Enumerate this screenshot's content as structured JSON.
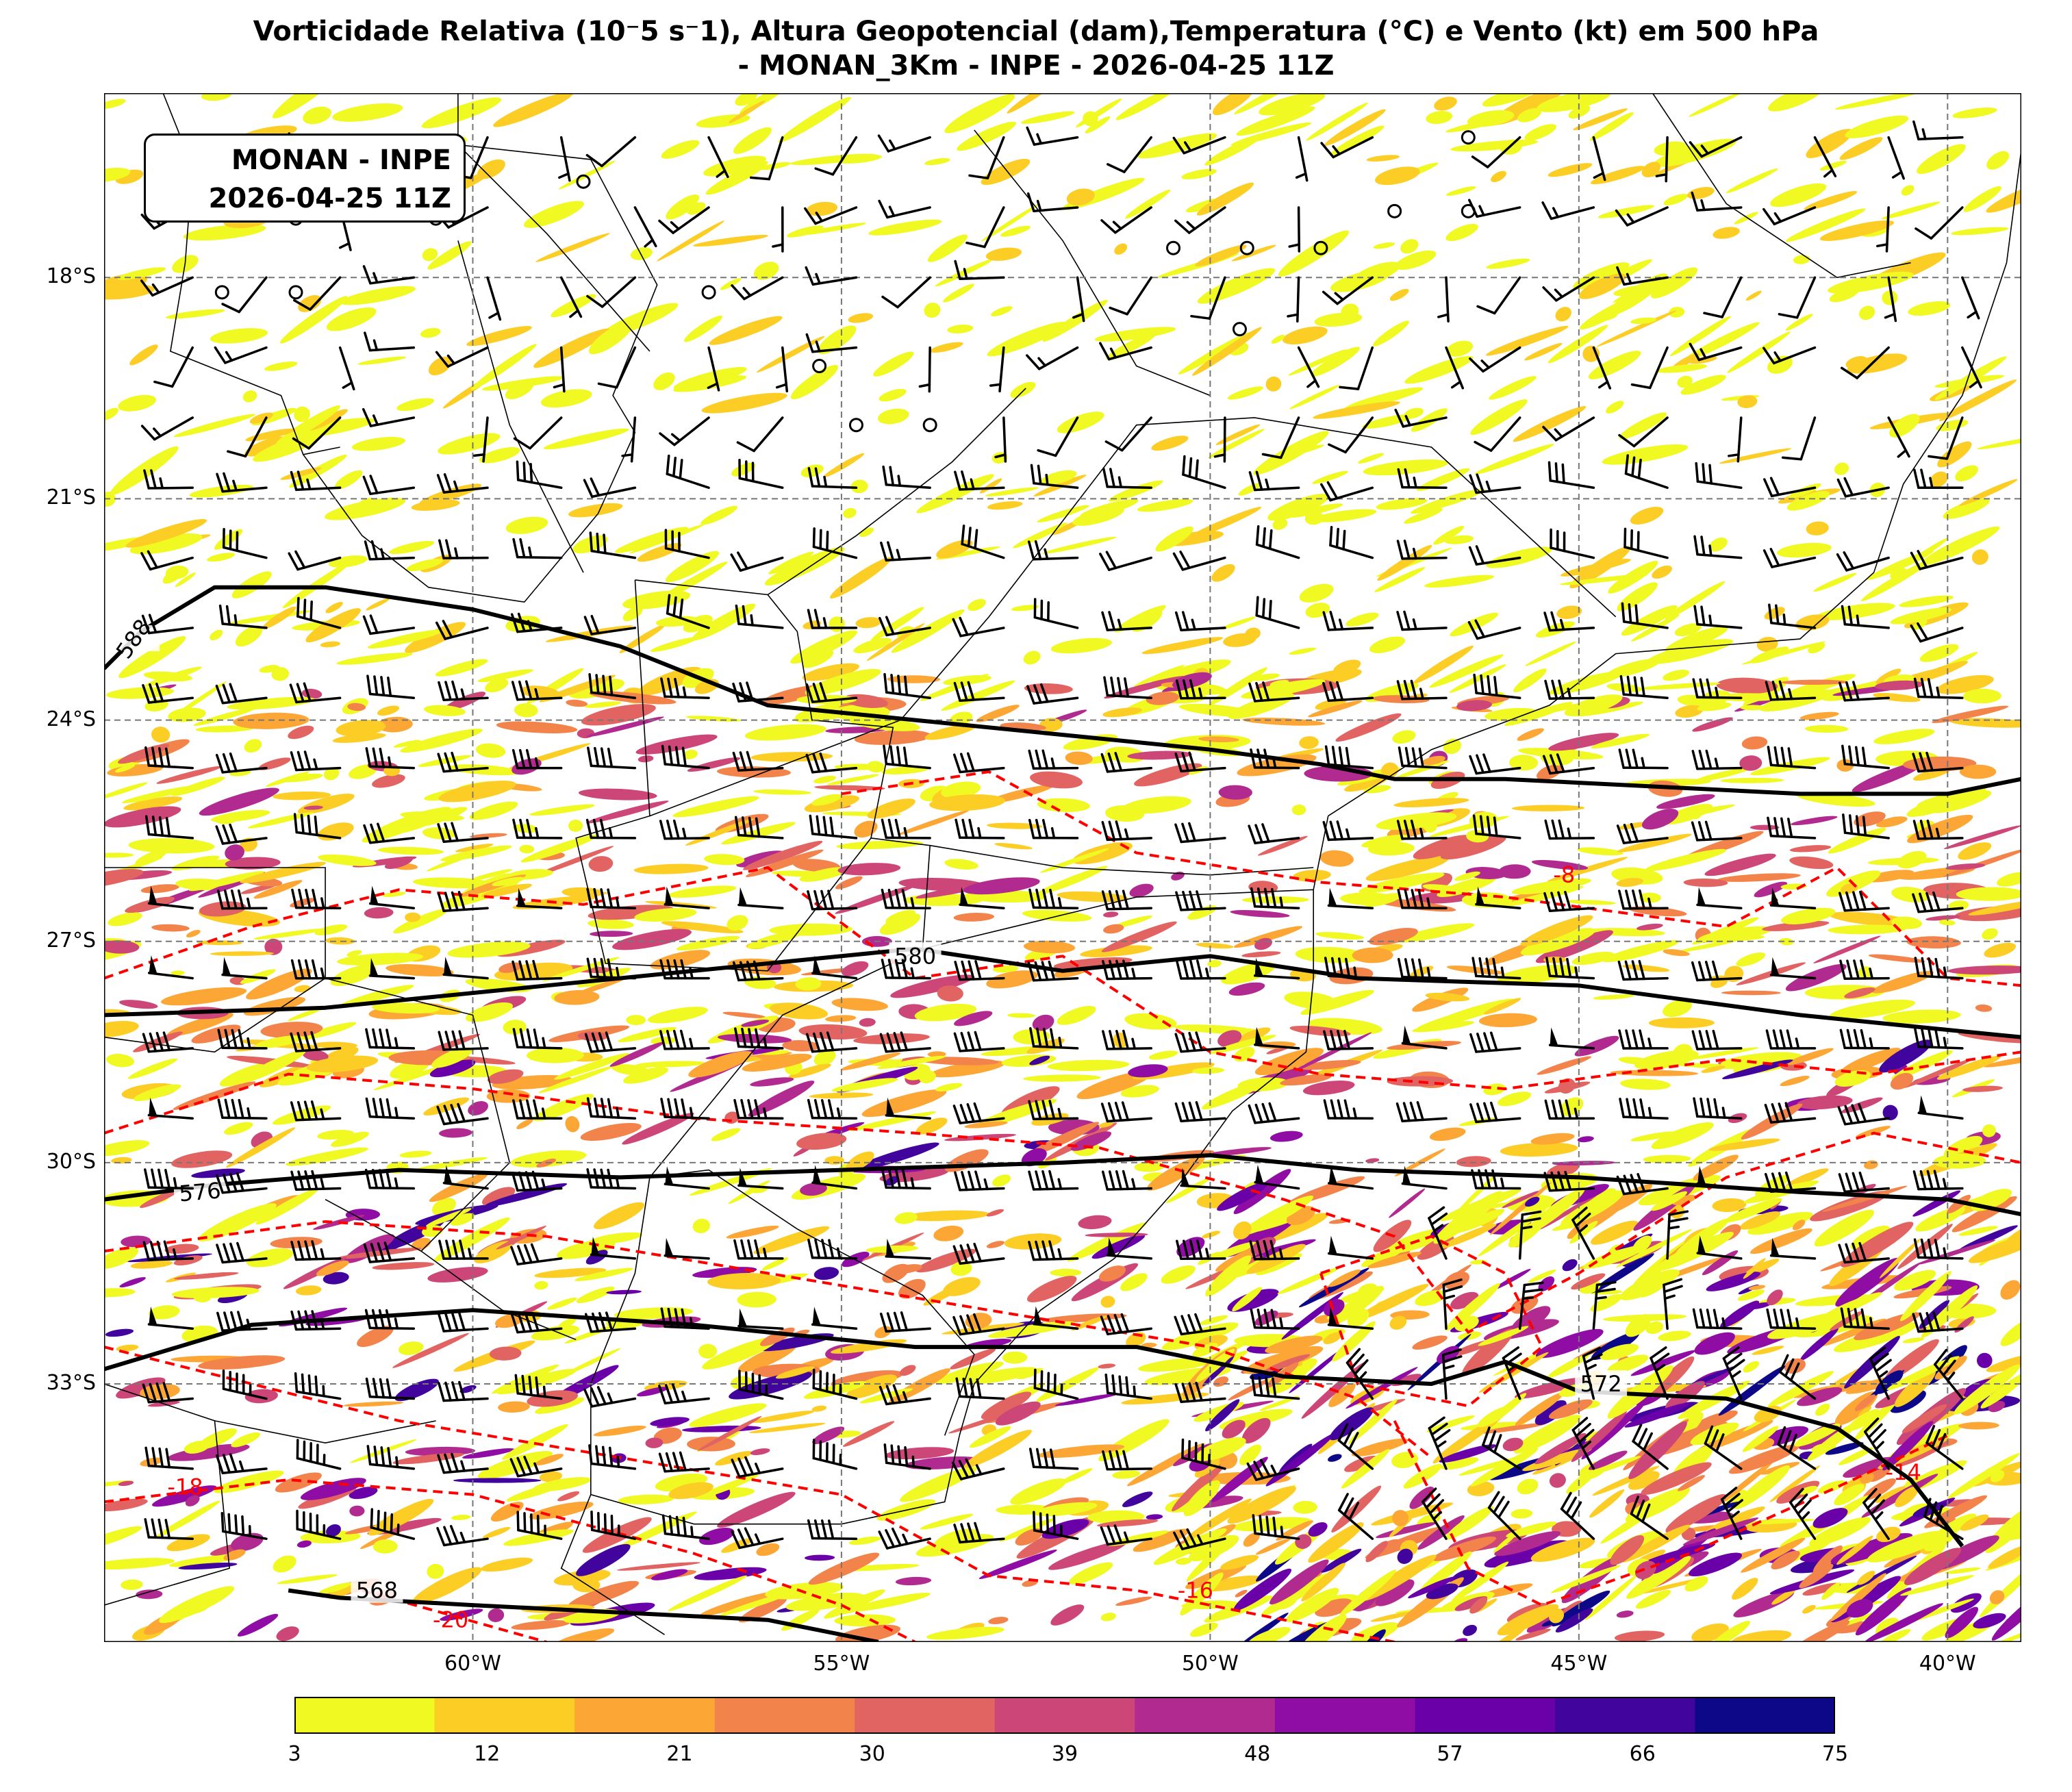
{
  "title": {
    "line1": "Vorticidade Relativa (10⁻5 s⁻1), Altura Geopotencial (dam),Temperatura (°C) e Vento (kt) em 500 hPa",
    "line2": "- MONAN_3Km - INPE - 2026-04-25 11Z"
  },
  "stamp": {
    "line1": "MONAN - INPE",
    "line2": "2026-04-25 11Z"
  },
  "map": {
    "lat_range": [
      -36.5,
      -15.5
    ],
    "lon_range": [
      -65,
      -39
    ],
    "lat_ticks": [
      {
        "value": -18,
        "label": "18°S"
      },
      {
        "value": -21,
        "label": "21°S"
      },
      {
        "value": -24,
        "label": "24°S"
      },
      {
        "value": -27,
        "label": "27°S"
      },
      {
        "value": -30,
        "label": "30°S"
      },
      {
        "value": -33,
        "label": "33°S"
      }
    ],
    "lon_ticks": [
      {
        "value": -60,
        "label": "60°W"
      },
      {
        "value": -55,
        "label": "55°W"
      },
      {
        "value": -50,
        "label": "50°W"
      },
      {
        "value": -45,
        "label": "45°W"
      },
      {
        "value": -40,
        "label": "40°W"
      }
    ],
    "grid": true
  },
  "geopotential_contours": [
    {
      "level": "588",
      "color": "#000000"
    },
    {
      "level": "580",
      "color": "#000000"
    },
    {
      "level": "576",
      "color": "#000000"
    },
    {
      "level": "572",
      "color": "#000000"
    },
    {
      "level": "568",
      "color": "#000000"
    }
  ],
  "temperature_contours": [
    {
      "level": "-8",
      "color": "#ff0000"
    },
    {
      "level": "-14",
      "color": "#ff0000"
    },
    {
      "level": "-16",
      "color": "#ff0000"
    },
    {
      "level": "-18",
      "color": "#ff0000"
    },
    {
      "level": "-20",
      "color": "#ff0000"
    }
  ],
  "colorbar": {
    "ticks": [
      "3",
      "12",
      "21",
      "30",
      "39",
      "48",
      "57",
      "66",
      "75"
    ],
    "colors": [
      "#f0f921",
      "#fcce25",
      "#fca636",
      "#f2844b",
      "#e16462",
      "#cc4778",
      "#b12a90",
      "#8f0da4",
      "#6a00a8",
      "#41049d",
      "#0d0887"
    ]
  }
}
